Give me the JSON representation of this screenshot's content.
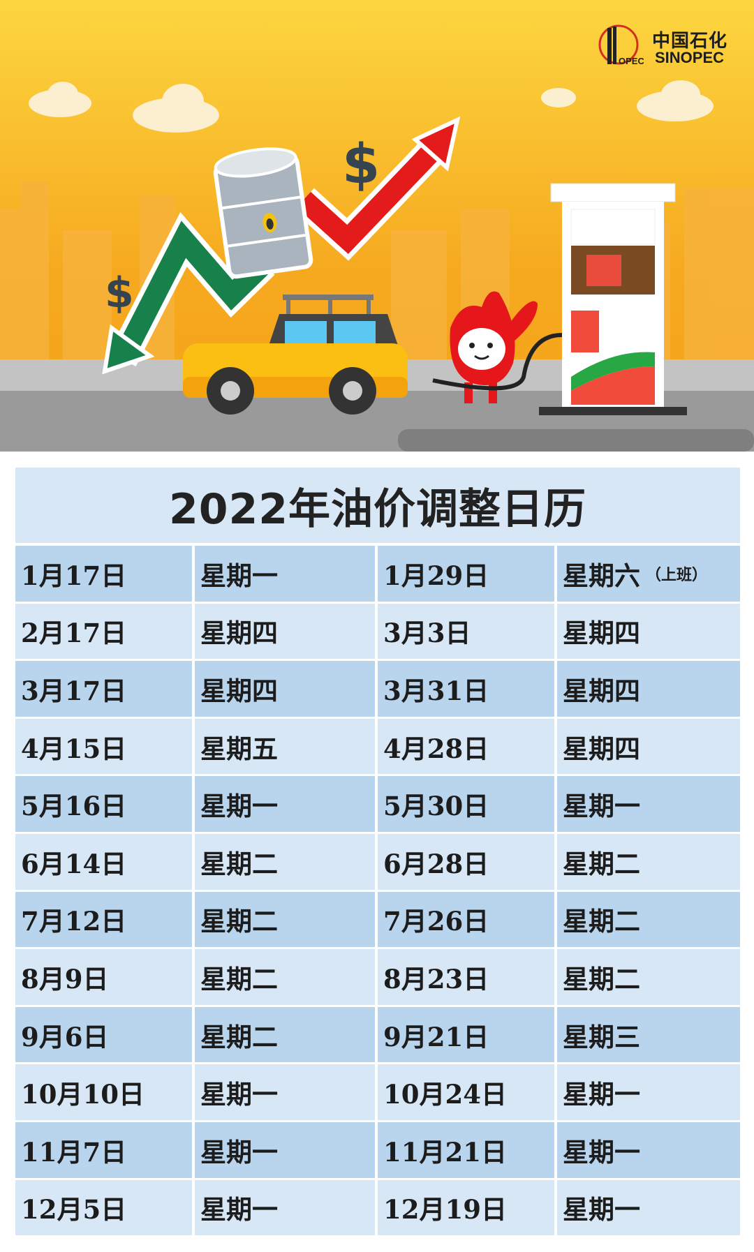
{
  "banner": {
    "logo": {
      "cn": "中国石化",
      "en": "SINOPEC",
      "mark_text": "中国石化"
    },
    "dollar_sign": "$",
    "colors": {
      "sky_top": "#fcd43e",
      "sky_bottom": "#f5a21f",
      "road": "#9a9a9a",
      "arrow_up": "#e31b1b",
      "arrow_down": "#18804a"
    }
  },
  "table": {
    "title": "2022年油价调整日历",
    "rows": [
      [
        "1月17日",
        "星期一",
        "1月29日",
        "星期六",
        "（上班）"
      ],
      [
        "2月17日",
        "星期四",
        "3月3日",
        "星期四"
      ],
      [
        "3月17日",
        "星期四",
        "3月31日",
        "星期四"
      ],
      [
        "4月15日",
        "星期五",
        "4月28日",
        "星期四"
      ],
      [
        "5月16日",
        "星期一",
        "5月30日",
        "星期一"
      ],
      [
        "6月14日",
        "星期二",
        "6月28日",
        "星期二"
      ],
      [
        "7月12日",
        "星期二",
        "7月26日",
        "星期二"
      ],
      [
        "8月9日",
        "星期二",
        "8月23日",
        "星期二"
      ],
      [
        "9月6日",
        "星期二",
        "9月21日",
        "星期三"
      ],
      [
        "10月10日",
        "星期一",
        "10月24日",
        "星期一"
      ],
      [
        "11月7日",
        "星期一",
        "11月21日",
        "星期一"
      ],
      [
        "12月5日",
        "星期一",
        "12月19日",
        "星期一"
      ]
    ]
  }
}
